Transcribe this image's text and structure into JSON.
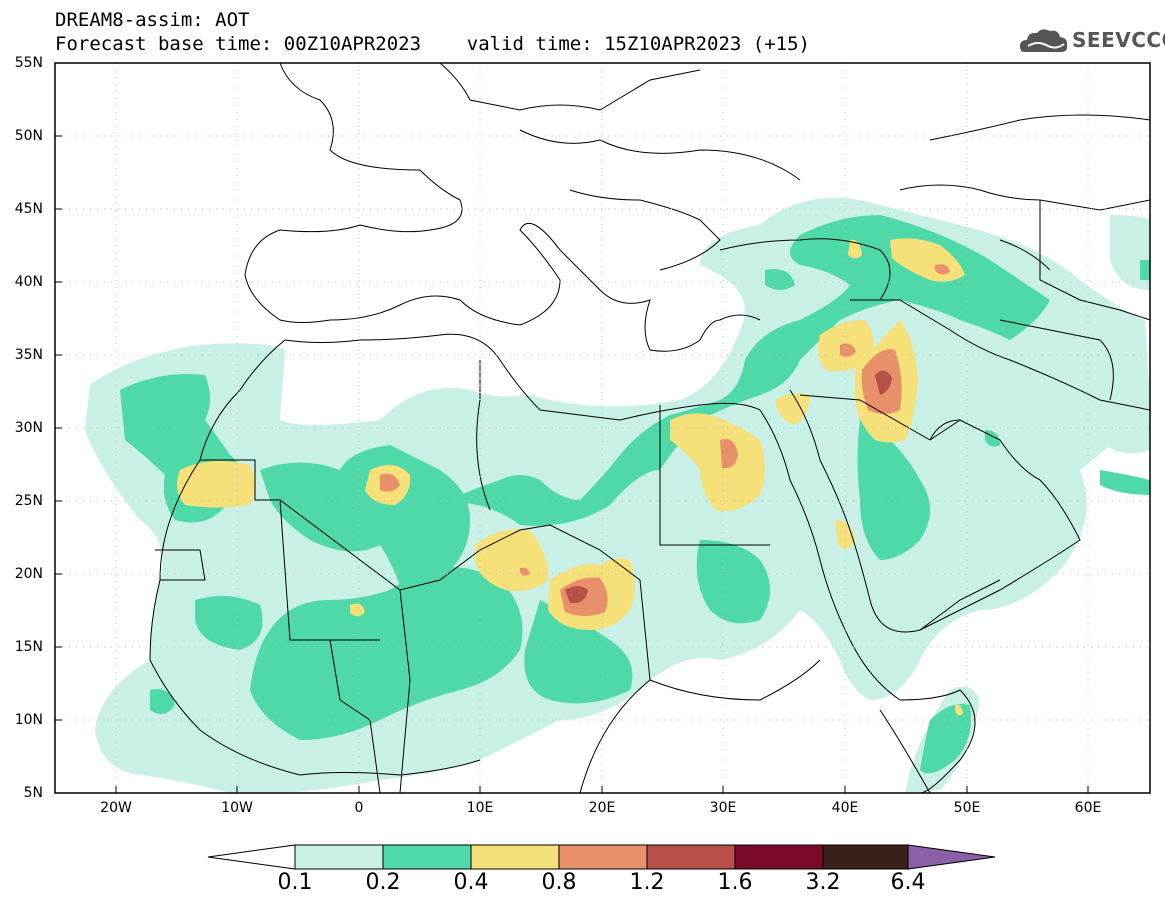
{
  "header": {
    "line1": "DREAM8-assim: AOT",
    "line2": "Forecast base time: 00Z10APR2023    valid time: 15Z10APR2023 (+15)",
    "logo_text": "SEEVCCC",
    "logo_icon": "cloud-logo-icon"
  },
  "map": {
    "lat_labels": [
      "55N",
      "50N",
      "45N",
      "40N",
      "35N",
      "30N",
      "25N",
      "20N",
      "15N",
      "10N",
      "5N"
    ],
    "lon_labels": [
      "20W",
      "10W",
      "0",
      "10E",
      "20E",
      "30E",
      "40E",
      "50E",
      "60E"
    ]
  },
  "colorbar": {
    "labels": [
      "0.1",
      "0.2",
      "0.4",
      "0.8",
      "1.2",
      "1.6",
      "3.2",
      "6.4"
    ],
    "colors": [
      "#ffffff",
      "#c8f0e6",
      "#4fd9a8",
      "#f5e07a",
      "#e8906a",
      "#b8504a",
      "#7a0a2a",
      "#3a2018",
      "#8a60a8"
    ]
  },
  "chart_data": {
    "type": "heatmap",
    "title": "DREAM8-assim: AOT",
    "lon_range": [
      -25,
      65
    ],
    "lat_range": [
      5,
      55
    ],
    "levels": [
      0.1,
      0.2,
      0.4,
      0.8,
      1.2,
      1.6,
      3.2,
      6.4
    ]
  }
}
